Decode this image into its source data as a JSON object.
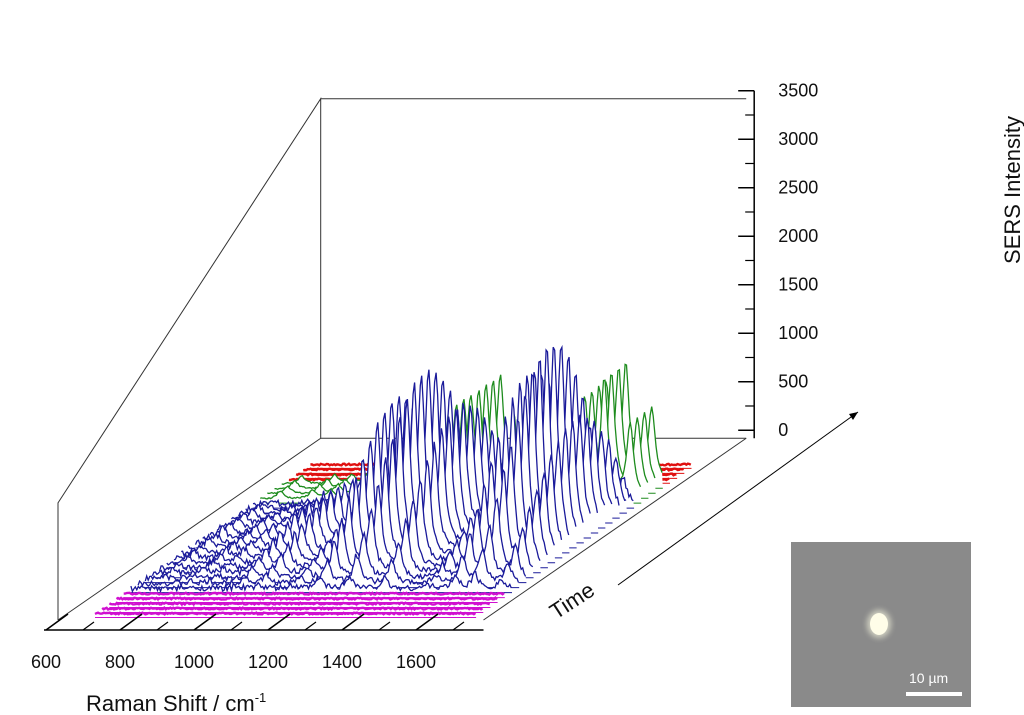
{
  "chart_data": {
    "type": "line",
    "subtype": "3d-waterfall",
    "title": "",
    "xlabel": "Raman Shift / cm",
    "xlabel_superscript": "-1",
    "ylabel": "SERS Intensity",
    "zlabel": "Time",
    "xlim": [
      600,
      1750
    ],
    "ylim": [
      0,
      3500
    ],
    "xticks": [
      "600",
      "800",
      "1000",
      "1200",
      "1400",
      "1600"
    ],
    "yticks": [
      "0",
      "500",
      "1000",
      "1500",
      "2000",
      "2500",
      "3000",
      "3500"
    ],
    "peak_positions": [
      744,
      832,
      881,
      978,
      1036,
      1127,
      1201,
      1281,
      1375,
      1493,
      1567,
      1620,
      1690
    ],
    "series_groups": [
      {
        "color": "#d010d0",
        "count": 5,
        "peak_heights": [
          0,
          0,
          0,
          0,
          0,
          0,
          0,
          0,
          0,
          0,
          0,
          0,
          0
        ]
      },
      {
        "color": "#1a1a9a",
        "count": 18,
        "peak_heights": [
          150,
          170,
          170,
          500,
          640,
          480,
          1880,
          2280,
          1800,
          680,
          2180,
          2600,
          1580
        ]
      },
      {
        "color": "#1e8c1e",
        "count": 4,
        "peak_heights": [
          80,
          90,
          90,
          250,
          320,
          240,
          900,
          1100,
          880,
          330,
          1000,
          1200,
          760
        ]
      },
      {
        "color": "#e01010",
        "count": 4,
        "peak_heights": [
          0,
          0,
          0,
          0,
          0,
          0,
          0,
          0,
          0,
          0,
          0,
          0,
          0
        ]
      }
    ],
    "grid": false,
    "legend": "none"
  },
  "inset": {
    "scale_label": "10 µm"
  }
}
